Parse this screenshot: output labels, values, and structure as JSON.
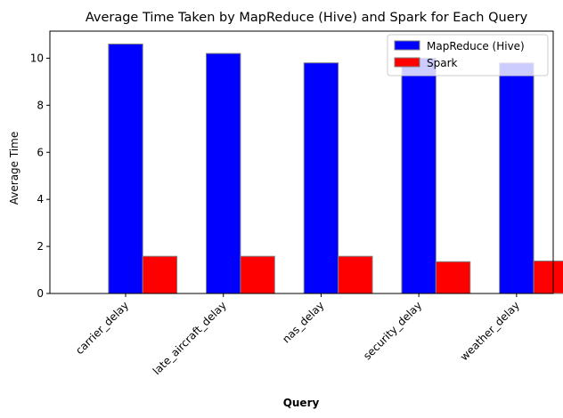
{
  "colors": {
    "mapreduce": "#0000ff",
    "spark": "#ff0000",
    "bar_edge": "#808080",
    "axis": "#000000"
  },
  "chart_data": {
    "type": "bar",
    "title": "Average Time Taken by MapReduce (Hive) and Spark for Each Query",
    "xlabel": "Query",
    "ylabel": "Average Time",
    "categories": [
      "carrier_delay",
      "late_aircraft_delay",
      "nas_delay",
      "security_delay",
      "weather_delay"
    ],
    "series": [
      {
        "name": "MapReduce (Hive)",
        "values": [
          10.6,
          10.2,
          9.8,
          10.0,
          9.8
        ]
      },
      {
        "name": "Spark",
        "values": [
          1.58,
          1.58,
          1.58,
          1.35,
          1.38
        ]
      }
    ],
    "ylim": [
      0,
      11.15
    ],
    "yticks": [
      0,
      2,
      4,
      6,
      8,
      10
    ],
    "grid": false,
    "legend": "top-right"
  }
}
